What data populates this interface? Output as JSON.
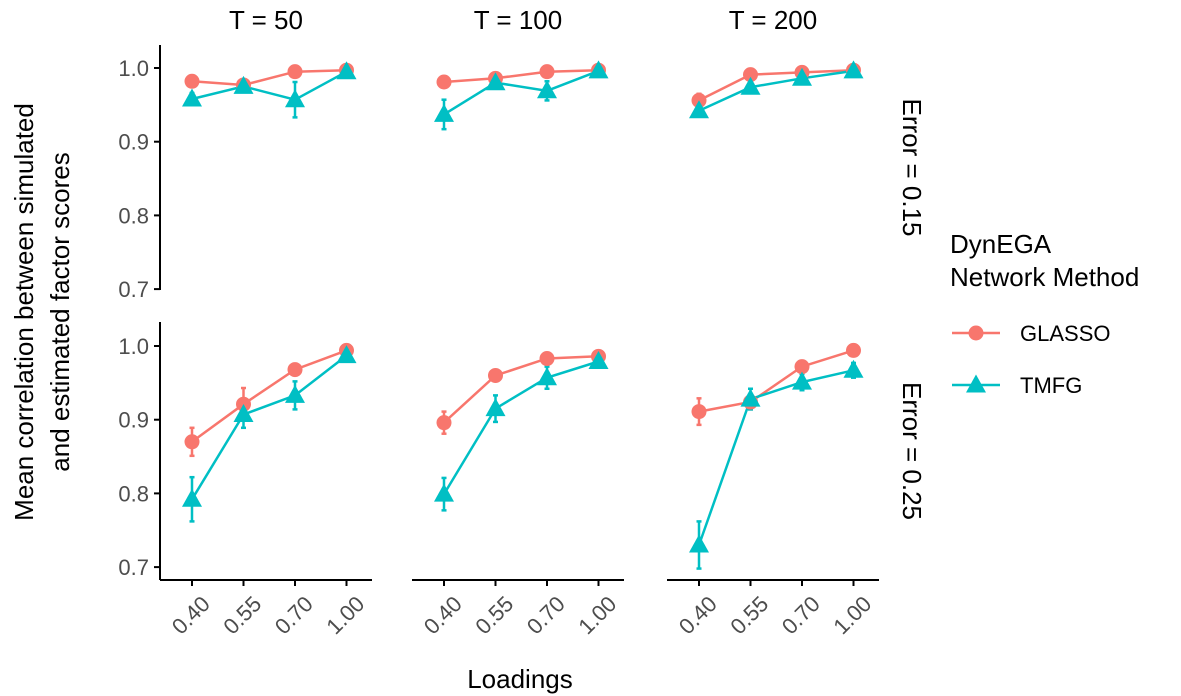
{
  "chart_data": {
    "type": "line",
    "ylabel_lines": [
      "Mean correlation between simulated",
      "and estimated factor scores"
    ],
    "xlabel": "Loadings",
    "categories": [
      "0.40",
      "0.55",
      "0.70",
      "1.00"
    ],
    "ylim": [
      0.7,
      1.0
    ],
    "yticks": [
      "0.7",
      "0.8",
      "0.9",
      "1.0"
    ],
    "grid": false,
    "legend": {
      "title_lines": [
        "DynEGA",
        "Network Method"
      ],
      "position": "right",
      "entries": [
        {
          "name": "GLASSO",
          "color": "#F8766D",
          "shape": "circle"
        },
        {
          "name": "TMFG",
          "color": "#00BFC4",
          "shape": "triangle"
        }
      ]
    },
    "col_facets": [
      "T = 50",
      "T = 100",
      "T = 200"
    ],
    "row_facets": [
      "Error = 0.15",
      "Error = 0.25"
    ],
    "panels": [
      {
        "row": 0,
        "col": 0,
        "series": [
          {
            "name": "GLASSO",
            "values": [
              0.982,
              0.977,
              0.995,
              0.997
            ],
            "err": [
              0.005,
              0.004,
              0.003,
              0.002
            ]
          },
          {
            "name": "TMFG",
            "values": [
              0.958,
              0.975,
              0.957,
              0.995
            ],
            "err": [
              0.008,
              0.005,
              0.024,
              0.003
            ]
          }
        ]
      },
      {
        "row": 0,
        "col": 1,
        "series": [
          {
            "name": "GLASSO",
            "values": [
              0.981,
              0.986,
              0.995,
              0.997
            ],
            "err": [
              0.004,
              0.003,
              0.002,
              0.002
            ]
          },
          {
            "name": "TMFG",
            "values": [
              0.937,
              0.98,
              0.969,
              0.996
            ],
            "err": [
              0.02,
              0.005,
              0.013,
              0.003
            ]
          }
        ]
      },
      {
        "row": 0,
        "col": 2,
        "series": [
          {
            "name": "GLASSO",
            "values": [
              0.956,
              0.991,
              0.994,
              0.997
            ],
            "err": [
              0.009,
              0.003,
              0.002,
              0.002
            ]
          },
          {
            "name": "TMFG",
            "values": [
              0.942,
              0.974,
              0.986,
              0.996
            ],
            "err": [
              0.008,
              0.005,
              0.004,
              0.003
            ]
          }
        ]
      },
      {
        "row": 1,
        "col": 0,
        "series": [
          {
            "name": "GLASSO",
            "values": [
              0.87,
              0.921,
              0.968,
              0.994
            ],
            "err": [
              0.019,
              0.022,
              0.008,
              0.004
            ]
          },
          {
            "name": "TMFG",
            "values": [
              0.792,
              0.907,
              0.933,
              0.987
            ],
            "err": [
              0.03,
              0.018,
              0.019,
              0.005
            ]
          }
        ]
      },
      {
        "row": 1,
        "col": 1,
        "series": [
          {
            "name": "GLASSO",
            "values": [
              0.896,
              0.96,
              0.983,
              0.986
            ],
            "err": [
              0.015,
              0.005,
              0.004,
              0.003
            ]
          },
          {
            "name": "TMFG",
            "values": [
              0.799,
              0.915,
              0.957,
              0.979
            ],
            "err": [
              0.022,
              0.018,
              0.015,
              0.004
            ]
          }
        ]
      },
      {
        "row": 1,
        "col": 2,
        "series": [
          {
            "name": "GLASSO",
            "values": [
              0.911,
              0.924,
              0.972,
              0.994
            ],
            "err": [
              0.018,
              0.01,
              0.006,
              0.004
            ]
          },
          {
            "name": "TMFG",
            "values": [
              0.73,
              0.928,
              0.951,
              0.967
            ],
            "err": [
              0.032,
              0.014,
              0.011,
              0.01
            ]
          }
        ]
      }
    ]
  }
}
